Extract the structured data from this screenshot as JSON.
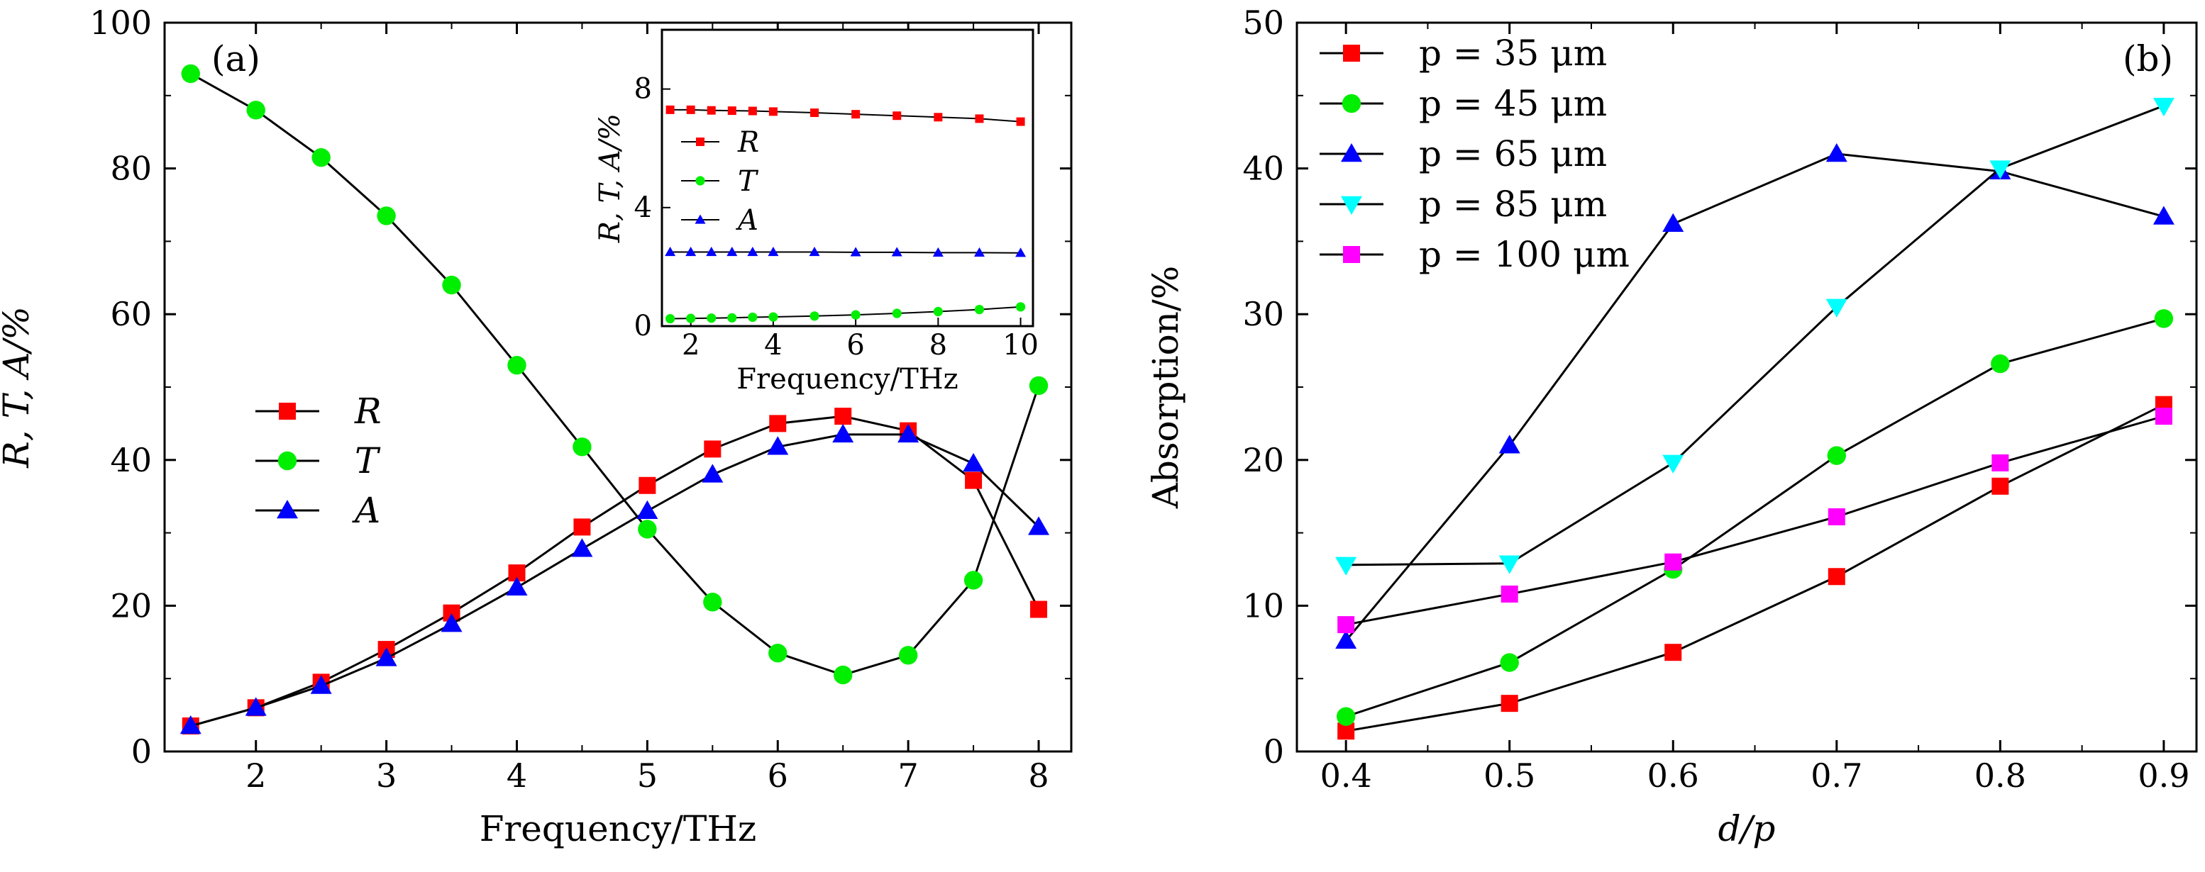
{
  "chart_data": [
    {
      "id": "a",
      "type": "line",
      "panel_label": "(a)",
      "xlabel": "Frequency/THz",
      "ylabel": "R, T, A/%",
      "xlim": [
        1.3,
        8.25
      ],
      "ylim": [
        0,
        100
      ],
      "xticks": [
        "2",
        "3",
        "4",
        "5",
        "6",
        "7",
        "8"
      ],
      "yticks": [
        "0",
        "20",
        "40",
        "60",
        "80",
        "100"
      ],
      "grid": false,
      "legend": "center-left",
      "x": [
        1.5,
        2,
        2.5,
        3,
        3.5,
        4,
        4.5,
        5,
        5.5,
        6,
        6.5,
        7,
        7.5,
        8
      ],
      "series": [
        {
          "name": "R",
          "marker": "square",
          "color": "#ff0000",
          "values": [
            3.5,
            6.0,
            9.5,
            14.0,
            19.0,
            24.5,
            30.8,
            36.5,
            41.5,
            45.0,
            46.0,
            44.0,
            37.2,
            19.5
          ]
        },
        {
          "name": "T",
          "marker": "circle",
          "color": "#00ee00",
          "values": [
            93.0,
            88.0,
            81.5,
            73.5,
            64.0,
            53.0,
            41.8,
            30.5,
            20.5,
            13.5,
            10.5,
            13.2,
            23.5,
            50.2
          ]
        },
        {
          "name": "A",
          "marker": "triangle-up",
          "color": "#0000ff",
          "values": [
            3.5,
            6.0,
            9.0,
            12.8,
            17.5,
            22.5,
            27.8,
            33.0,
            38.0,
            41.8,
            43.5,
            43.5,
            39.5,
            30.8
          ]
        }
      ],
      "inset": {
        "type": "line",
        "xlabel": "Frequency/THz",
        "ylabel": "R, T, A/%",
        "xlim": [
          1.3,
          10.3
        ],
        "ylim": [
          0,
          10
        ],
        "xticks": [
          "2",
          "4",
          "6",
          "8",
          "10"
        ],
        "yticks": [
          "0",
          "4",
          "8"
        ],
        "legend": "center-left",
        "x": [
          1.5,
          2,
          2.5,
          3,
          3.5,
          4,
          5,
          6,
          7,
          8,
          9,
          10
        ],
        "series": [
          {
            "name": "R",
            "marker": "square",
            "color": "#ff0000",
            "values": [
              7.3,
              7.3,
              7.28,
              7.27,
              7.26,
              7.24,
              7.2,
              7.15,
              7.1,
              7.05,
              7.0,
              6.9
            ]
          },
          {
            "name": "T",
            "marker": "circle",
            "color": "#00ee00",
            "values": [
              0.25,
              0.26,
              0.27,
              0.28,
              0.3,
              0.31,
              0.34,
              0.38,
              0.43,
              0.49,
              0.56,
              0.65
            ]
          },
          {
            "name": "A",
            "marker": "triangle-up",
            "color": "#0000ff",
            "values": [
              2.5,
              2.5,
              2.5,
              2.5,
              2.5,
              2.5,
              2.5,
              2.49,
              2.49,
              2.48,
              2.48,
              2.47
            ]
          }
        ]
      }
    },
    {
      "id": "b",
      "type": "line",
      "panel_label": "(b)",
      "xlabel": "d/p",
      "ylabel": "Absorption/%",
      "xlim": [
        0.37,
        0.92
      ],
      "ylim": [
        0,
        50
      ],
      "xticks": [
        "0.4",
        "0.5",
        "0.6",
        "0.7",
        "0.8",
        "0.9"
      ],
      "yticks": [
        "0",
        "10",
        "20",
        "30",
        "40",
        "50"
      ],
      "grid": false,
      "legend": "top-left",
      "x": [
        0.4,
        0.5,
        0.6,
        0.7,
        0.8,
        0.9
      ],
      "series": [
        {
          "name": "p = 35 μm",
          "marker": "square",
          "color": "#ff0000",
          "values": [
            1.4,
            3.3,
            6.8,
            12.0,
            18.2,
            23.8
          ]
        },
        {
          "name": "p = 45 μm",
          "marker": "circle",
          "color": "#00ee00",
          "values": [
            2.4,
            6.1,
            12.5,
            20.3,
            26.6,
            29.7
          ]
        },
        {
          "name": "p = 65 μm",
          "marker": "triangle-up",
          "color": "#0000ff",
          "values": [
            7.6,
            21.0,
            36.2,
            41.0,
            39.8,
            36.7
          ]
        },
        {
          "name": "p = 85 μm",
          "marker": "triangle-down",
          "color": "#00ffff",
          "values": [
            12.8,
            12.9,
            19.8,
            30.5,
            40.0,
            44.3
          ]
        },
        {
          "name": "p = 100 μm",
          "marker": "square",
          "color": "#ff00ff",
          "values": [
            8.7,
            10.8,
            13.0,
            16.1,
            19.8,
            23.0
          ]
        }
      ]
    }
  ]
}
